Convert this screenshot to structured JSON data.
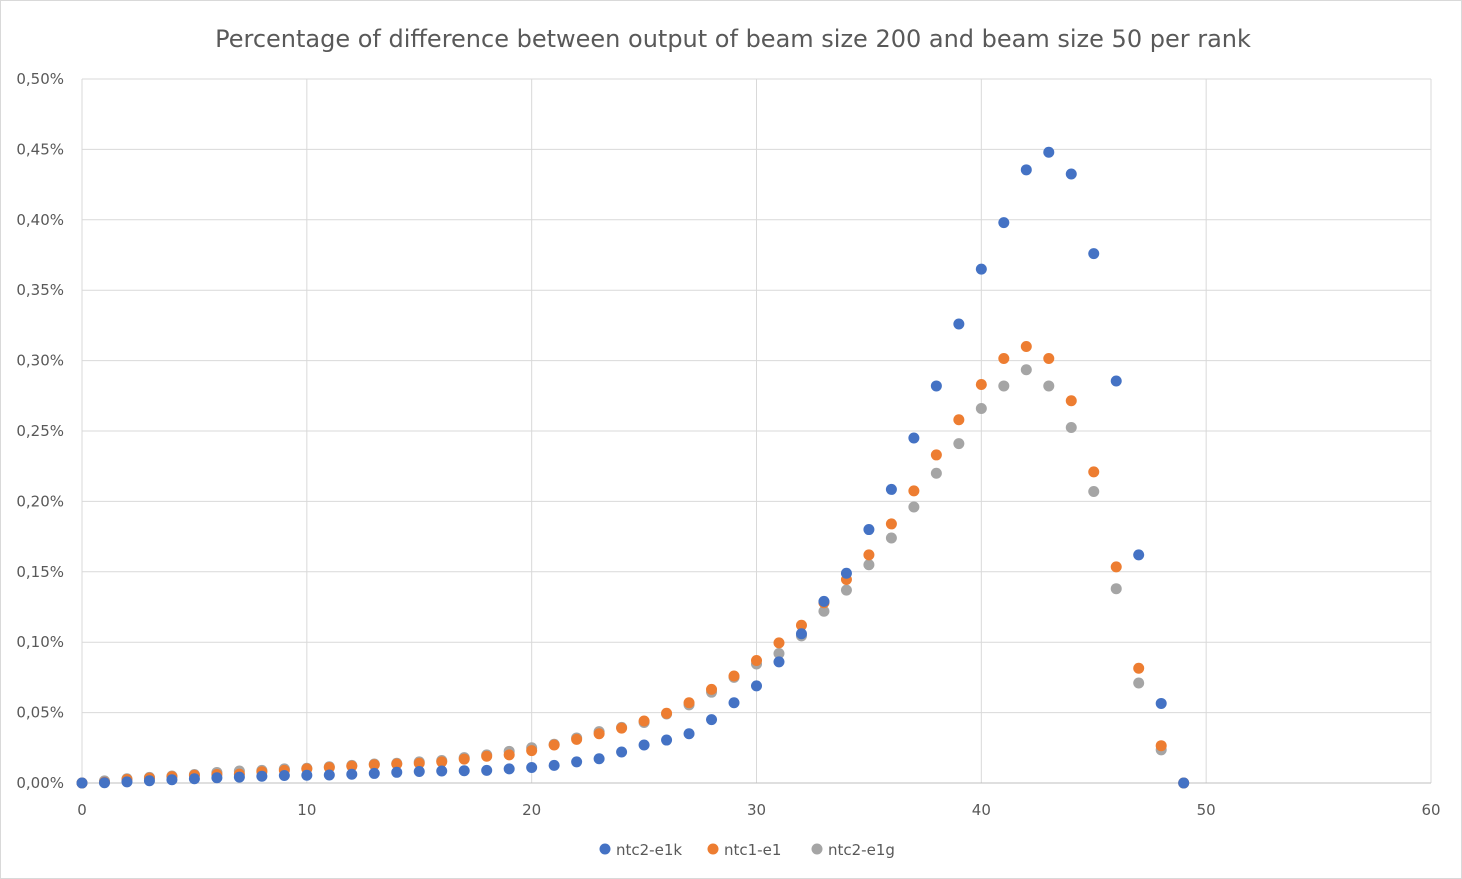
{
  "chart_data": {
    "type": "scatter",
    "title": "Percentage of difference between output of beam size 200 and beam size 50 per rank",
    "xlabel": "",
    "ylabel": "",
    "xlim": [
      0,
      60
    ],
    "ylim": [
      0,
      0.5
    ],
    "x_ticks": [
      0,
      10,
      20,
      30,
      40,
      50,
      60
    ],
    "y_ticks": [
      0,
      0.05,
      0.1,
      0.15,
      0.2,
      0.25,
      0.3,
      0.35,
      0.4,
      0.45,
      0.5
    ],
    "x_tick_labels": [
      "0",
      "10",
      "20",
      "30",
      "40",
      "50",
      "60"
    ],
    "y_tick_labels": [
      "0,00%",
      "0,05%",
      "0,10%",
      "0,15%",
      "0,20%",
      "0,25%",
      "0,30%",
      "0,35%",
      "0,40%",
      "0,45%",
      "0,50%"
    ],
    "grid": true,
    "legend_position": "bottom",
    "x": [
      0,
      1,
      2,
      3,
      4,
      5,
      6,
      7,
      8,
      9,
      10,
      11,
      12,
      13,
      14,
      15,
      16,
      17,
      18,
      19,
      20,
      21,
      22,
      23,
      24,
      25,
      26,
      27,
      28,
      29,
      30,
      31,
      32,
      33,
      34,
      35,
      36,
      37,
      38,
      39,
      40,
      41,
      42,
      43,
      44,
      45,
      46,
      47,
      48,
      49
    ],
    "series": [
      {
        "name": "ntc2-e1k",
        "color": "#4472c4",
        "values": [
          0.0,
          0.0002,
          0.0008,
          0.0016,
          0.0023,
          0.003,
          0.0037,
          0.0042,
          0.0048,
          0.0053,
          0.0055,
          0.0057,
          0.0062,
          0.0068,
          0.0076,
          0.0082,
          0.0085,
          0.0087,
          0.009,
          0.01,
          0.011,
          0.0125,
          0.015,
          0.0172,
          0.022,
          0.027,
          0.0305,
          0.035,
          0.045,
          0.057,
          0.069,
          0.086,
          0.106,
          0.129,
          0.149,
          0.18,
          0.2085,
          0.245,
          0.282,
          0.326,
          0.365,
          0.398,
          0.4355,
          0.448,
          0.4325,
          0.376,
          0.2855,
          0.162,
          0.0565,
          0.0
        ]
      },
      {
        "name": "ntc1-e1",
        "color": "#ed7d31",
        "values": [
          0.0,
          0.0005,
          0.0025,
          0.0035,
          0.0045,
          0.0055,
          0.006,
          0.0063,
          0.008,
          0.009,
          0.01,
          0.011,
          0.012,
          0.013,
          0.0135,
          0.014,
          0.015,
          0.017,
          0.019,
          0.02,
          0.023,
          0.027,
          0.031,
          0.035,
          0.039,
          0.044,
          0.0495,
          0.057,
          0.0665,
          0.076,
          0.087,
          0.0995,
          0.112,
          0.128,
          0.1445,
          0.162,
          0.184,
          0.2075,
          0.233,
          0.258,
          0.283,
          0.3015,
          0.31,
          0.3015,
          0.2715,
          0.221,
          0.1535,
          0.0815,
          0.0265,
          0.0
        ]
      },
      {
        "name": "ntc2-e1g",
        "color": "#a5a5a5",
        "values": [
          0.0,
          0.0015,
          0.003,
          0.004,
          0.005,
          0.006,
          0.0075,
          0.0085,
          0.009,
          0.01,
          0.0105,
          0.0115,
          0.0125,
          0.0135,
          0.014,
          0.015,
          0.016,
          0.018,
          0.02,
          0.0225,
          0.025,
          0.0275,
          0.032,
          0.0365,
          0.0395,
          0.043,
          0.049,
          0.0555,
          0.0645,
          0.075,
          0.0845,
          0.092,
          0.1045,
          0.122,
          0.137,
          0.155,
          0.174,
          0.196,
          0.22,
          0.241,
          0.266,
          0.282,
          0.2935,
          0.282,
          0.2525,
          0.207,
          0.138,
          0.071,
          0.0235,
          0.0
        ]
      }
    ]
  }
}
